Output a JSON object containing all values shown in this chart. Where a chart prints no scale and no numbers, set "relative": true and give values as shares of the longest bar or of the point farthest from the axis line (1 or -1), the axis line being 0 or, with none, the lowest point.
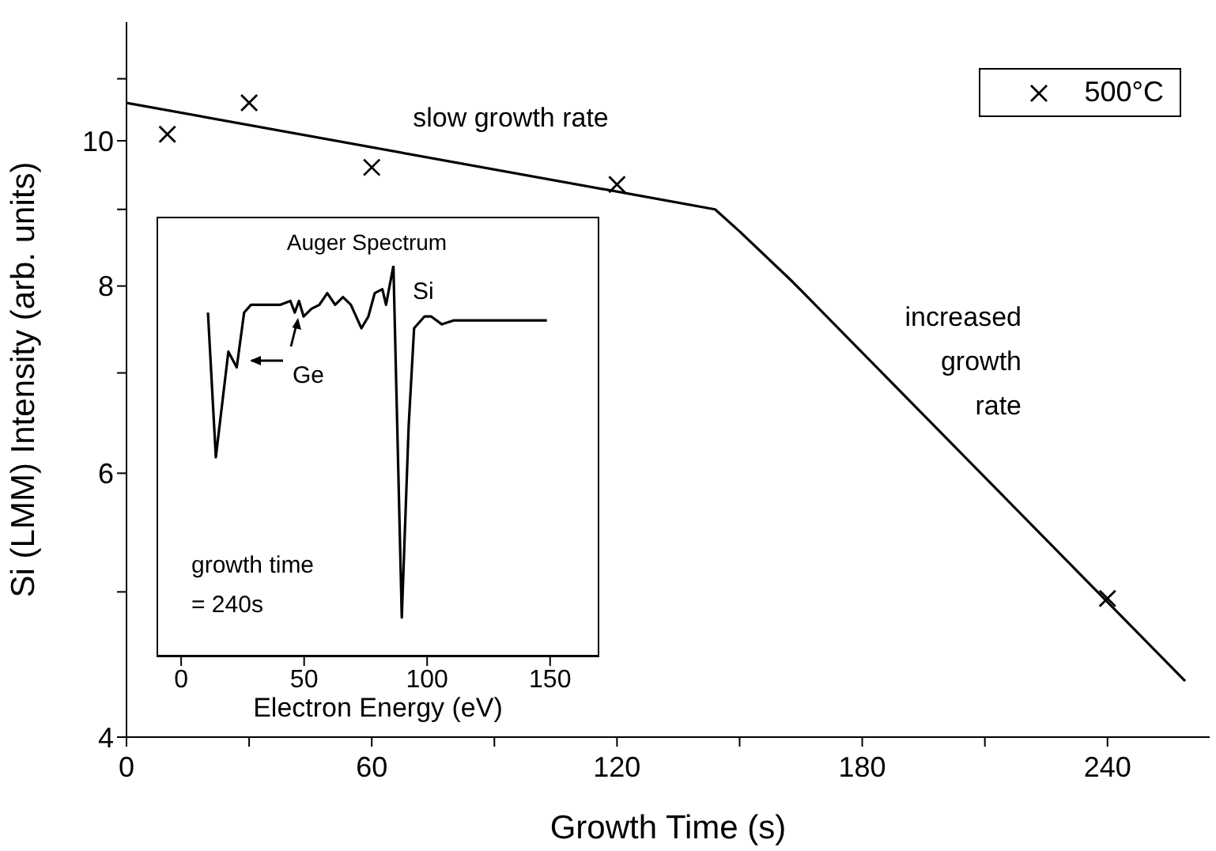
{
  "chart_data": [
    {
      "type": "scatter",
      "xlabel": "Growth Time (s)",
      "ylabel": "Si (LMM) Intensity (arb. units)",
      "annotations": [
        "slow growth rate",
        "increased\ngrowth\nrate"
      ],
      "xlim": [
        0,
        265
      ],
      "xticks": [
        0,
        {
          "value": 30,
          "label": null
        },
        60,
        {
          "value": 90,
          "label": null
        },
        120,
        {
          "value": 150,
          "label": null
        },
        180,
        {
          "value": 210,
          "label": null
        },
        240
      ],
      "ylim": [
        4,
        12
      ],
      "yticks": [
        4,
        {
          "value": 5,
          "label": null
        },
        6,
        {
          "value": 7,
          "label": null
        },
        8,
        {
          "value": 9,
          "label": null
        },
        10,
        {
          "value": 11,
          "label": null
        }
      ],
      "log": true,
      "legend": "top right",
      "series": [
        {
          "name": "500°C",
          "marker": "cross",
          "color": "#000000",
          "x": [
            10,
            30,
            60,
            120,
            240
          ],
          "values": [
            10.1,
            10.6,
            9.6,
            9.35,
            4.95
          ]
        },
        {
          "type": "line",
          "color": "#000000",
          "x": [
            0,
            144,
            150,
            163,
            259
          ],
          "values": [
            10.6,
            9.0,
            8.7,
            8.05,
            4.36
          ]
        }
      ]
    },
    {
      "type": "line",
      "title": "Auger Spectrum",
      "xlabel": "Electron Energy (eV)",
      "annotations": [
        "Si",
        "Ge",
        "growth time\n= 240s"
      ],
      "xlim": [
        -10,
        170
      ],
      "xticks": [
        0,
        50,
        100,
        150
      ],
      "relative": true,
      "series": [
        {
          "color": "#000000",
          "x": [
            10.9,
            14.1,
            19.2,
            22.6,
            25.6,
            28.4,
            33.8,
            40.2,
            44.4,
            46.2,
            47.9,
            49.8,
            53,
            56.2,
            59.4,
            62.6,
            65.8,
            69,
            73.3,
            76.1,
            78.7,
            81.8,
            83.3,
            86.3,
            89.7,
            92.5,
            94.7,
            98.9,
            101.7,
            106,
            110.7,
            123.5,
            134,
            148.7
          ],
          "values": [
            0.88,
            0.51,
            0.78,
            0.74,
            0.88,
            0.9,
            0.9,
            0.9,
            0.91,
            0.88,
            0.91,
            0.87,
            0.89,
            0.9,
            0.93,
            0.9,
            0.92,
            0.9,
            0.84,
            0.87,
            0.93,
            0.94,
            0.9,
            1,
            0.1,
            0.59,
            0.84,
            0.87,
            0.87,
            0.85,
            0.86,
            0.86,
            0.86,
            0.86
          ]
        }
      ]
    }
  ]
}
